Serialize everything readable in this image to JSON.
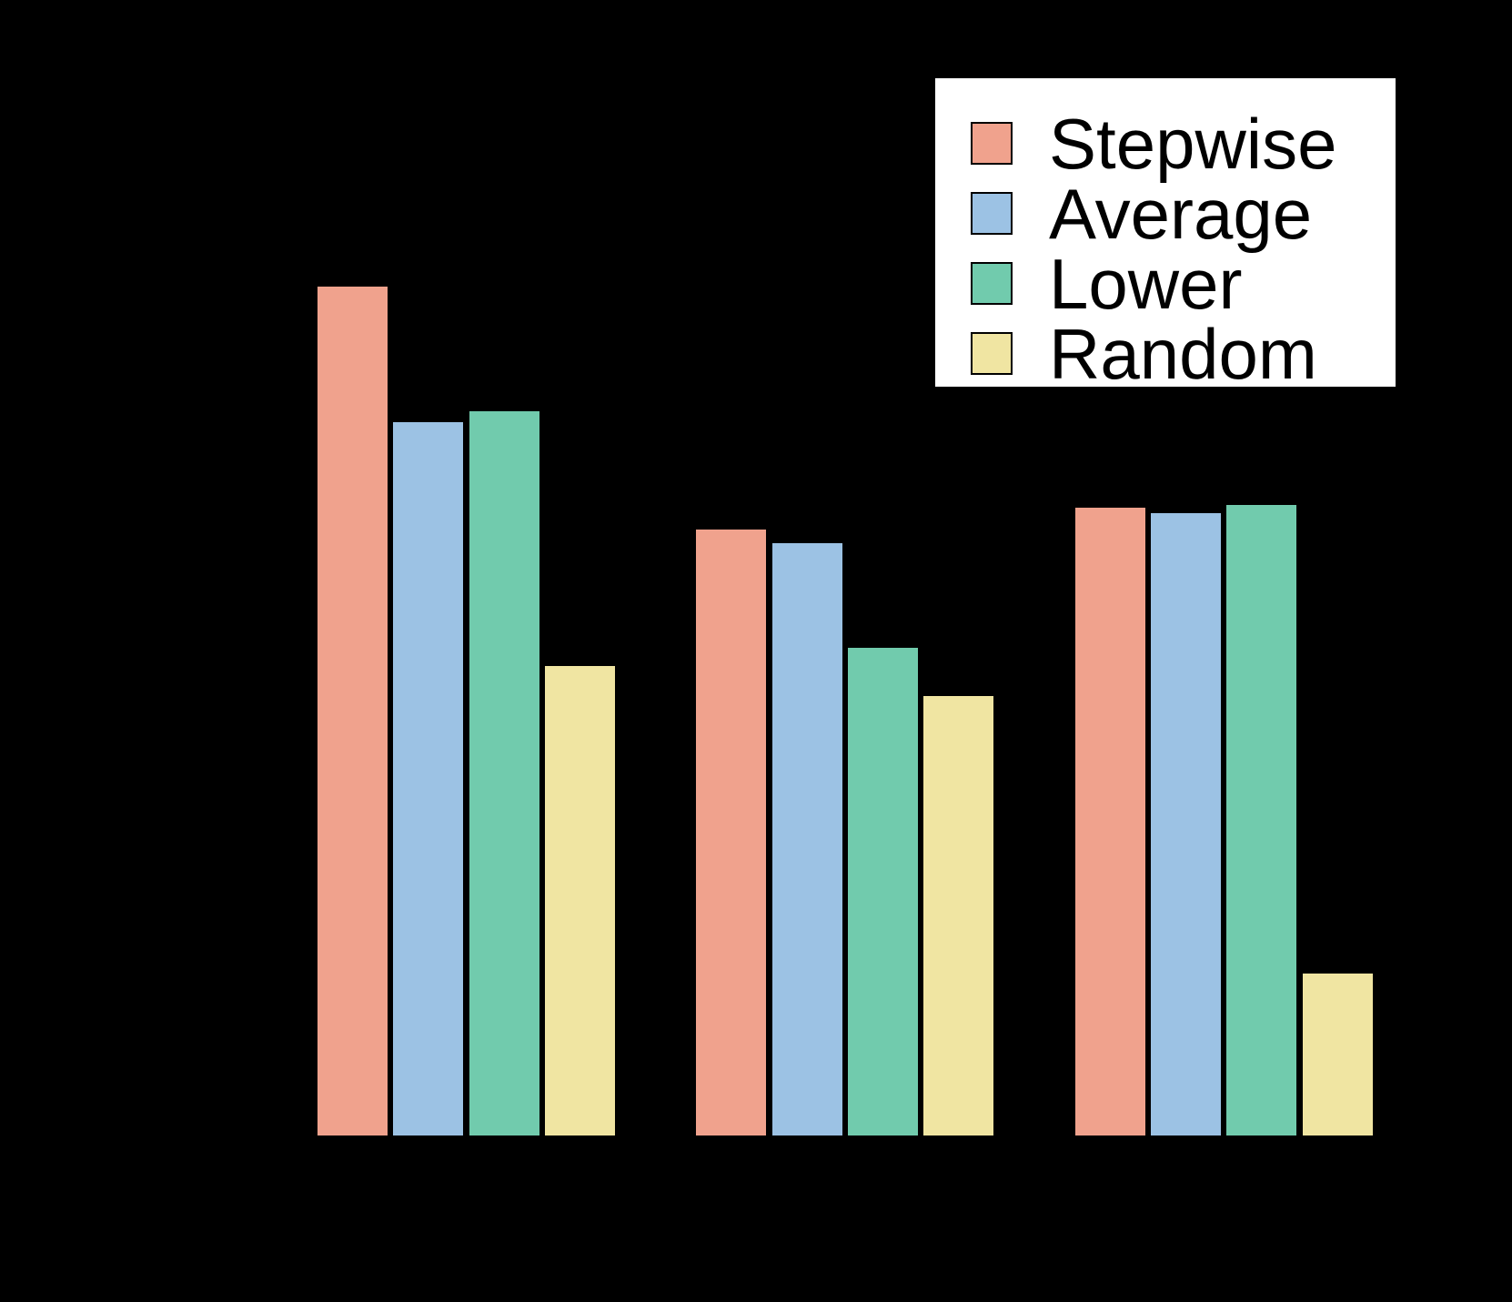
{
  "figure": {
    "background_color": "#000000",
    "legend": {
      "background_color": "#ffffff",
      "border_color": "#000000",
      "text_color": "#000000"
    }
  },
  "chart_data": {
    "type": "bar",
    "title": "",
    "xlabel": "",
    "ylabel": "",
    "categories": [
      "",
      "",
      ""
    ],
    "n_groups": 3,
    "bars_per_group": 4,
    "series": [
      {
        "name": "Stepwise",
        "color": "#F0A28D",
        "values": [
          0.937,
          0.67,
          0.694
        ]
      },
      {
        "name": "Average",
        "color": "#9CC2E4",
        "values": [
          0.788,
          0.655,
          0.688
        ]
      },
      {
        "name": "Lower",
        "color": "#71CBAD",
        "values": [
          0.8,
          0.54,
          0.697
        ]
      },
      {
        "name": "Random",
        "color": "#F0E5A2",
        "values": [
          0.52,
          0.487,
          0.182
        ]
      }
    ],
    "bar_edge_color": "#000000",
    "legend_position": "upper right",
    "legend_labels": [
      "Stepwise",
      "Average",
      "Lower",
      "Random"
    ],
    "ylim": [
      0,
      1
    ],
    "grid": false,
    "axes_text_visible": false,
    "note": "Axis ticks, tick labels and category labels are not visible in the screenshot (black text over black background); series values are estimated from bar pixel heights on a 0-1 scale."
  }
}
